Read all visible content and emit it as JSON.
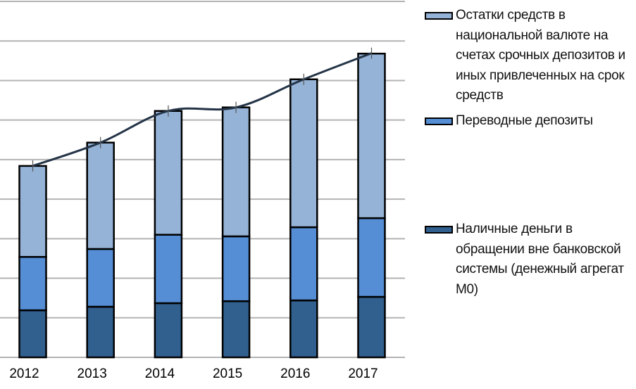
{
  "chart_data": {
    "type": "bar",
    "stacked": true,
    "title": "",
    "xlabel": "",
    "ylabel": "",
    "categories": [
      "2012",
      "2013",
      "2014",
      "2015",
      "2016",
      "2017"
    ],
    "series": [
      {
        "name": "Наличные деньги в обращении вне банковской системы (денежный агрегат М0)",
        "color": "#31608F",
        "values": [
          1.19,
          1.28,
          1.37,
          1.42,
          1.44,
          1.53
        ]
      },
      {
        "name": "Переводные депозиты",
        "color": "#558ED5",
        "values": [
          1.35,
          1.46,
          1.73,
          1.64,
          1.85,
          1.99
        ]
      },
      {
        "name": "Остатки средств в национальной валюте на счетах срочных депозитов и иных привлеченных на срок средств",
        "color": "#95B3D7",
        "values": [
          2.3,
          2.69,
          3.13,
          3.26,
          3.74,
          4.16
        ]
      }
    ],
    "line": {
      "name": "total",
      "color": "#243447",
      "smoothed": true,
      "values": [
        4.84,
        5.43,
        6.23,
        6.32,
        7.03,
        7.69
      ]
    },
    "ylim": [
      0,
      9
    ],
    "gridlines": 9,
    "grid": true,
    "y_tick_labels_visible": false,
    "legend_position": "right"
  },
  "legend": {
    "items": [
      {
        "label_lines": [
          "Остатки средств в",
          "национальной валюте на",
          "счетах срочных депозитов и",
          "иных привлеченных на срок",
          "средств"
        ],
        "color": "#95B3D7"
      },
      {
        "label_lines": [
          "Переводные депозиты"
        ],
        "color": "#558ED5"
      },
      {
        "label_lines": [
          "Наличные деньги в",
          "обращении вне банковской",
          "системы (денежный агрегат",
          "М0)"
        ],
        "color": "#31608F"
      }
    ]
  }
}
